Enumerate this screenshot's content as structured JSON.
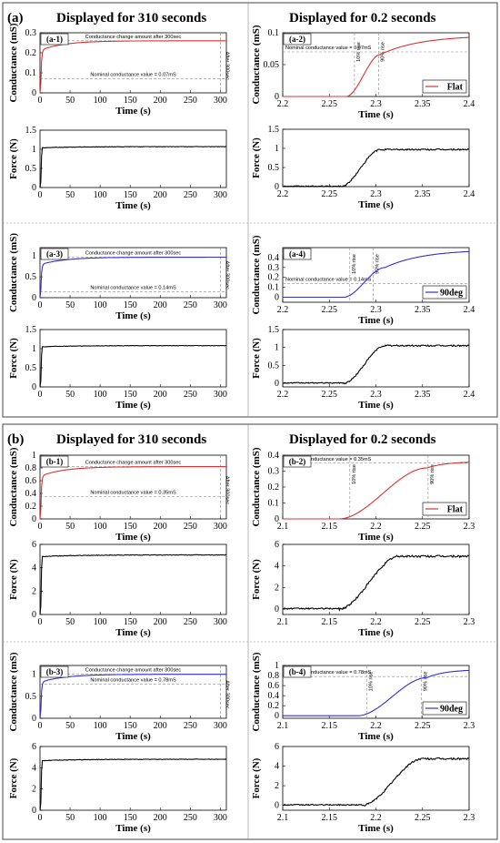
{
  "colors": {
    "red": "#e03030",
    "blue": "#3030d8",
    "black": "#000000",
    "frame": "#444444",
    "guide": "#8a8a8a"
  },
  "sections": [
    {
      "label": "(a)",
      "title_left": "Displayed for 310 seconds",
      "title_right": "Displayed for 0.2 seconds"
    },
    {
      "label": "(b)",
      "title_left": "Displayed for 310 seconds",
      "title_right": "Displayed for 0.2 seconds"
    }
  ],
  "chart_data": [
    {
      "id": "a1",
      "panel_label": "(a-1)",
      "type": "line",
      "xlabel": "Time (s)",
      "ylabel": "Conductance (mS)",
      "xlim": [
        0,
        310
      ],
      "ylim": [
        0,
        0.3
      ],
      "xticks": [
        0,
        50,
        100,
        150,
        200,
        250,
        300
      ],
      "yticks": [
        0,
        0.1,
        0.2,
        0.3
      ],
      "color": "red",
      "shape": "slow_conductance",
      "final": 0.26,
      "annotations": {
        "change_text": "Conductance change amount after 300sec",
        "nominal_text": "Nominal conductance value = 0.07mS",
        "nominal_value": 0.07,
        "after_text": "After 300sec"
      }
    },
    {
      "id": "a1f",
      "type": "line",
      "xlabel": "Time (s)",
      "ylabel": "Force (N)",
      "xlim": [
        0,
        310
      ],
      "ylim": [
        0,
        1.5
      ],
      "xticks": [
        0,
        50,
        100,
        150,
        200,
        250,
        300
      ],
      "yticks": [
        0,
        0.5,
        1,
        1.5
      ],
      "color": "black",
      "shape": "slow_force",
      "final": 1.07
    },
    {
      "id": "a2",
      "panel_label": "(a-2)",
      "type": "line",
      "xlabel": "Time (s)",
      "ylabel": "Conductance (mS)",
      "xlim": [
        2.2,
        2.4
      ],
      "ylim": [
        0,
        0.1
      ],
      "xticks": [
        2.2,
        2.25,
        2.3,
        2.35,
        2.4
      ],
      "yticks": [
        0,
        0.05,
        0.1
      ],
      "color": "red",
      "shape": "fast_conductance",
      "t_start": 2.268,
      "t_sat": 2.305,
      "plateau": 0.066,
      "final": 0.096,
      "legend": "Flat",
      "annotations": {
        "nominal_text": "Nominal conductance value = 0.07mS",
        "nominal_value": 0.07,
        "rise10_text": "10% rise",
        "rise10_t": 2.277,
        "rise90_text": "90% rise",
        "rise90_t": 2.303
      }
    },
    {
      "id": "a2f",
      "type": "line",
      "xlabel": "Time (s)",
      "ylabel": "Force (N)",
      "xlim": [
        2.2,
        2.4
      ],
      "ylim": [
        0,
        1.5
      ],
      "xticks": [
        2.2,
        2.25,
        2.3,
        2.35,
        2.4
      ],
      "yticks": [
        0,
        0.5,
        1,
        1.5
      ],
      "color": "black",
      "shape": "fast_force",
      "t_start": 2.262,
      "t_end": 2.305,
      "final": 0.97
    },
    {
      "id": "a3",
      "panel_label": "(a-3)",
      "type": "line",
      "xlabel": "Time (s)",
      "ylabel": "Conductance (mS)",
      "xlim": [
        0,
        310
      ],
      "ylim": [
        0,
        1.2
      ],
      "xticks": [
        0,
        50,
        100,
        150,
        200,
        250,
        300
      ],
      "yticks": [
        0,
        0.5,
        1
      ],
      "color": "blue",
      "shape": "slow_conductance",
      "final": 0.97,
      "annotations": {
        "change_text": "Conductance change amount after 300sec",
        "nominal_text": "Nominal conductance value = 0.14mS",
        "nominal_value": 0.14,
        "after_text": "After 300sec"
      }
    },
    {
      "id": "a3f",
      "type": "line",
      "xlabel": "Time (s)",
      "ylabel": "Force (N)",
      "xlim": [
        0,
        310
      ],
      "ylim": [
        0,
        1.5
      ],
      "xticks": [
        0,
        50,
        100,
        150,
        200,
        250,
        300
      ],
      "yticks": [
        0,
        0.5,
        1,
        1.5
      ],
      "color": "black",
      "shape": "slow_force",
      "final": 1.08
    },
    {
      "id": "a4",
      "panel_label": "(a-4)",
      "type": "line",
      "xlabel": "Time (s)",
      "ylabel": "Conductance (mS)",
      "xlim": [
        2.2,
        2.4
      ],
      "ylim": [
        -0.05,
        0.5
      ],
      "xticks": [
        2.2,
        2.25,
        2.3,
        2.35,
        2.4
      ],
      "yticks": [
        0,
        0.1,
        0.2,
        0.3,
        0.4
      ],
      "color": "blue",
      "shape": "fast_conductance",
      "t_start": 2.265,
      "t_sat": 2.31,
      "plateau": 0.3,
      "final": 0.48,
      "legend": "90deg",
      "annotations": {
        "nominal_text": "Nominal conductance value = 0.14mS",
        "nominal_value": 0.14,
        "rise10_text": "10% rise",
        "rise10_t": 2.272,
        "rise90_text": "90% rise",
        "rise90_t": 2.297
      }
    },
    {
      "id": "a4f",
      "type": "line",
      "xlabel": "Time (s)",
      "ylabel": "Force (N)",
      "xlim": [
        2.2,
        2.4
      ],
      "ylim": [
        -0.1,
        1.5
      ],
      "xticks": [
        2.2,
        2.25,
        2.3,
        2.35,
        2.4
      ],
      "yticks": [
        0,
        0.5,
        1,
        1.5
      ],
      "color": "black",
      "shape": "fast_force",
      "t_start": 2.265,
      "t_end": 2.31,
      "final": 1.05
    },
    {
      "id": "b1",
      "panel_label": "(b-1)",
      "type": "line",
      "xlabel": "Time (s)",
      "ylabel": "Conductance (mS)",
      "xlim": [
        0,
        310
      ],
      "ylim": [
        0,
        1
      ],
      "xticks": [
        0,
        50,
        100,
        150,
        200,
        250,
        300
      ],
      "yticks": [
        0,
        0.2,
        0.4,
        0.6,
        0.8,
        1
      ],
      "color": "red",
      "shape": "slow_conductance",
      "final": 0.82,
      "annotations": {
        "change_text": "Conductance change amount after 300sec",
        "nominal_text": "Nominal conductance value = 0.35mS",
        "nominal_value": 0.35,
        "after_text": "After 300sec"
      }
    },
    {
      "id": "b1f",
      "type": "line",
      "xlabel": "Time (s)",
      "ylabel": "Force (N)",
      "xlim": [
        0,
        310
      ],
      "ylim": [
        0,
        6
      ],
      "xticks": [
        0,
        50,
        100,
        150,
        200,
        250,
        300
      ],
      "yticks": [
        0,
        2,
        4,
        6
      ],
      "color": "black",
      "shape": "slow_force",
      "final": 5.1
    },
    {
      "id": "b2",
      "panel_label": "(b-2)",
      "type": "line",
      "xlabel": "Time (s)",
      "ylabel": "Conductance (mS)",
      "xlim": [
        2.1,
        2.3
      ],
      "ylim": [
        0,
        0.4
      ],
      "xticks": [
        2.1,
        2.15,
        2.2,
        2.25,
        2.3
      ],
      "yticks": [
        0,
        0.1,
        0.2,
        0.3,
        0.4
      ],
      "color": "red",
      "shape": "fast_conductance",
      "t_start": 2.16,
      "t_sat": 2.255,
      "plateau": 0.32,
      "final": 0.36,
      "legend": "Flat",
      "annotations": {
        "nominal_text": "Nominal conductance value = 0.35mS",
        "nominal_value": 0.35,
        "rise10_text": "10% rise",
        "rise10_t": 2.172,
        "rise90_text": "90% rise",
        "rise90_t": 2.256
      }
    },
    {
      "id": "b2f",
      "type": "line",
      "xlabel": "Time (s)",
      "ylabel": "Force (N)",
      "xlim": [
        2.1,
        2.3
      ],
      "ylim": [
        -0.5,
        6
      ],
      "xticks": [
        2.1,
        2.15,
        2.2,
        2.25,
        2.3
      ],
      "yticks": [
        0,
        2,
        4,
        6
      ],
      "color": "black",
      "shape": "fast_force",
      "t_start": 2.16,
      "t_end": 2.225,
      "final": 4.9
    },
    {
      "id": "b3",
      "panel_label": "(b-3)",
      "type": "line",
      "xlabel": "Time (s)",
      "ylabel": "Conductance (mS)",
      "xlim": [
        0,
        310
      ],
      "ylim": [
        0,
        1.2
      ],
      "xticks": [
        0,
        50,
        100,
        150,
        200,
        250,
        300
      ],
      "yticks": [
        0,
        0.5,
        1
      ],
      "color": "blue",
      "shape": "slow_conductance",
      "final": 1.0,
      "annotations": {
        "change_text": "Conductance change amount after 300sec",
        "nominal_text": "Nominal conductance value = 0.78mS",
        "nominal_value": 0.78,
        "after_text": "After 300sec"
      }
    },
    {
      "id": "b3f",
      "type": "line",
      "xlabel": "Time (s)",
      "ylabel": "Force (N)",
      "xlim": [
        0,
        310
      ],
      "ylim": [
        0,
        6
      ],
      "xticks": [
        0,
        50,
        100,
        150,
        200,
        250,
        300
      ],
      "yticks": [
        0,
        2,
        4,
        6
      ],
      "color": "black",
      "shape": "slow_force",
      "final": 4.8
    },
    {
      "id": "b4",
      "panel_label": "(b-4)",
      "type": "line",
      "xlabel": "Time (s)",
      "ylabel": "Conductance (mS)",
      "xlim": [
        2.1,
        2.3
      ],
      "ylim": [
        -0.05,
        1
      ],
      "xticks": [
        2.1,
        2.15,
        2.2,
        2.25,
        2.3
      ],
      "yticks": [
        0,
        0.2,
        0.4,
        0.6,
        0.8,
        1
      ],
      "color": "blue",
      "shape": "fast_conductance",
      "t_start": 2.18,
      "t_sat": 2.255,
      "plateau": 0.76,
      "final": 0.92,
      "legend": "90deg",
      "annotations": {
        "nominal_text": "Nominal conductance value = 0.78mS",
        "nominal_value": 0.78,
        "rise10_text": "10% rise",
        "rise10_t": 2.19,
        "rise90_text": "90% rise",
        "rise90_t": 2.249
      }
    },
    {
      "id": "b4f",
      "type": "line",
      "xlabel": "Time (s)",
      "ylabel": "Force (N)",
      "xlim": [
        2.1,
        2.3
      ],
      "ylim": [
        -0.5,
        6
      ],
      "xticks": [
        2.1,
        2.15,
        2.2,
        2.25,
        2.3
      ],
      "yticks": [
        0,
        2,
        4,
        6
      ],
      "color": "black",
      "shape": "fast_force",
      "t_start": 2.185,
      "t_end": 2.25,
      "final": 4.75
    }
  ]
}
